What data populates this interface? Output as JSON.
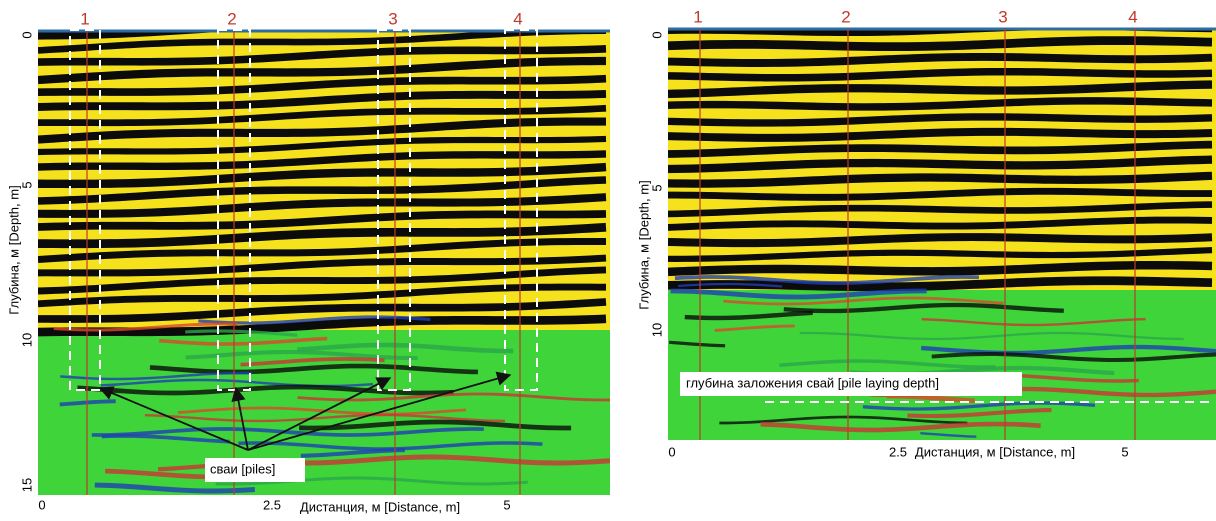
{
  "left_panel": {
    "trace_labels": [
      "1",
      "2",
      "3",
      "4"
    ],
    "y_ticks": [
      "0",
      "5",
      "10",
      "15"
    ],
    "x_ticks": [
      "0",
      "2.5",
      "5"
    ],
    "y_axis_title": "Глубина, м [Depth, m]",
    "x_axis_title": "Дистанция, м [Distance, m]",
    "annotation": "сваи [piles]"
  },
  "right_panel": {
    "trace_labels": [
      "1",
      "2",
      "3",
      "4"
    ],
    "y_ticks": [
      "0",
      "5",
      "10"
    ],
    "x_ticks": [
      "0",
      "2.5",
      "5"
    ],
    "y_axis_title": "Глубина, м [Depth, m]",
    "x_axis_title": "Дистанция, м [Distance, m]",
    "annotation": "глубина заложения свай [pile laying depth]"
  }
}
